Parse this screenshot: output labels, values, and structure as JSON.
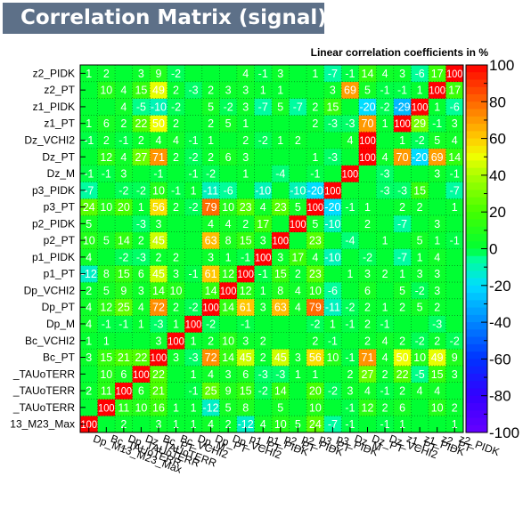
{
  "chart_data": {
    "type": "heatmap",
    "title": "Correlation Matrix (signal)",
    "subtitle": "Linear correlation coefficients in %",
    "variables": [
      "Dp_M13_M23_Max",
      "Bc_TAUoTERR",
      "Dp_TAUoTERR",
      "Dz_TAUoTERR",
      "Bc_PT",
      "Bc_VCHI2",
      "Dp_M",
      "Dp_PT",
      "Dp_VCHI2",
      "p1_PT",
      "p1_PIDK",
      "p2_PT",
      "p2_PIDK",
      "p3_PT",
      "p3_PIDK",
      "Dz_M",
      "Dz_PT",
      "Dz_VCHI2",
      "z1_PT",
      "z1_PIDK",
      "z2_PT",
      "z2_PIDK"
    ],
    "x_tick_labels": [
      "Dp_M13_M23_Max",
      "Bc_TAUoTERR",
      "Dp_TAUoTERR",
      "Dz_TAUoTERR",
      "Bc_PT",
      "Bc_VCHI2",
      "Dp_M",
      "Dp_PT",
      "Dp_VCHI2",
      "p1_PT",
      "p1_PIDK",
      "p2_PT",
      "p2_PIDK",
      "p3_PT",
      "p3_PIDK",
      "Dz_M",
      "Dz_PT",
      "Dz_VCHI2",
      "z1_PT",
      "z1_PIDK",
      "z2_PT",
      "z2_PIDK"
    ],
    "y_tick_labels": [
      "13_M23_Max",
      "_TAUoTERR",
      "_TAUoTERR",
      "_TAUoTERR",
      "Bc_PT",
      "Bc_VCHI2",
      "Dp_M",
      "Dp_PT",
      "Dp_VCHI2",
      "p1_PT",
      "p1_PIDK",
      "p2_PT",
      "p2_PIDK",
      "p3_PT",
      "p3_PIDK",
      "Dz_M",
      "Dz_PT",
      "Dz_VCHI2",
      "z1_PT",
      "z1_PIDK",
      "z2_PT",
      "z2_PIDK"
    ],
    "values": [
      [
        100,
        null,
        2,
        null,
        3,
        1,
        1,
        4,
        2,
        -12,
        4,
        10,
        5,
        24,
        -7,
        -1,
        null,
        -1,
        1,
        null,
        null,
        1
      ],
      [
        null,
        100,
        11,
        10,
        16,
        1,
        1,
        -12,
        5,
        8,
        null,
        5,
        null,
        10,
        null,
        -1,
        12,
        2,
        6,
        null,
        10,
        2
      ],
      [
        2,
        11,
        100,
        6,
        21,
        null,
        -1,
        25,
        9,
        15,
        -2,
        14,
        null,
        20,
        -2,
        3,
        4,
        -1,
        2,
        4,
        4,
        null
      ],
      [
        null,
        10,
        6,
        100,
        22,
        null,
        1,
        4,
        3,
        6,
        -3,
        -3,
        1,
        1,
        null,
        2,
        27,
        2,
        22,
        -5,
        15,
        3
      ],
      [
        3,
        15,
        21,
        22,
        100,
        3,
        -3,
        72,
        14,
        45,
        2,
        45,
        3,
        56,
        10,
        -1,
        71,
        4,
        50,
        10,
        49,
        9
      ],
      [
        1,
        1,
        null,
        null,
        3,
        100,
        1,
        2,
        10,
        3,
        2,
        null,
        null,
        2,
        -1,
        null,
        2,
        4,
        2,
        -2,
        2,
        -2
      ],
      [
        4,
        -1,
        -1,
        1,
        -3,
        1,
        100,
        -2,
        null,
        -1,
        null,
        null,
        null,
        -2,
        1,
        -1,
        2,
        -1,
        null,
        null,
        -3,
        null
      ],
      [
        4,
        12,
        25,
        4,
        72,
        2,
        -2,
        100,
        14,
        61,
        3,
        63,
        4,
        79,
        -11,
        -2,
        2,
        1,
        2,
        5,
        2,
        null
      ],
      [
        2,
        5,
        9,
        3,
        14,
        10,
        null,
        14,
        100,
        12,
        1,
        8,
        4,
        10,
        -6,
        null,
        6,
        null,
        5,
        -2,
        3,
        null
      ],
      [
        -12,
        8,
        15,
        6,
        45,
        3,
        -1,
        61,
        12,
        100,
        -1,
        15,
        2,
        23,
        null,
        1,
        3,
        2,
        1,
        3,
        3,
        null
      ],
      [
        4,
        null,
        -2,
        -3,
        2,
        2,
        null,
        3,
        1,
        -1,
        100,
        3,
        17,
        4,
        -10,
        null,
        -2,
        null,
        -7,
        1,
        4,
        null
      ],
      [
        10,
        5,
        14,
        2,
        45,
        null,
        null,
        63,
        8,
        15,
        3,
        100,
        null,
        23,
        null,
        -4,
        null,
        1,
        null,
        5,
        1,
        -1
      ],
      [
        5,
        null,
        null,
        -3,
        3,
        null,
        null,
        4,
        4,
        2,
        17,
        null,
        100,
        5,
        -10,
        null,
        2,
        null,
        -7,
        null,
        3,
        null
      ],
      [
        24,
        10,
        20,
        1,
        56,
        2,
        -2,
        79,
        10,
        23,
        4,
        23,
        5,
        100,
        -20,
        -1,
        1,
        null,
        2,
        2,
        null,
        1
      ],
      [
        -7,
        null,
        -2,
        -2,
        10,
        -1,
        1,
        -11,
        -6,
        null,
        -10,
        null,
        -10,
        -20,
        100,
        null,
        null,
        -3,
        -3,
        15,
        null,
        -7
      ],
      [
        -1,
        -1,
        3,
        null,
        -1,
        null,
        -1,
        -2,
        null,
        1,
        null,
        -4,
        null,
        -1,
        null,
        100,
        null,
        -3,
        null,
        null,
        3,
        -1
      ],
      [
        null,
        12,
        4,
        27,
        71,
        2,
        -2,
        2,
        6,
        3,
        null,
        null,
        null,
        1,
        -3,
        null,
        100,
        4,
        70,
        -20,
        69,
        14
      ],
      [
        -1,
        2,
        -1,
        2,
        4,
        4,
        -1,
        1,
        null,
        2,
        -2,
        1,
        2,
        null,
        null,
        4,
        100,
        null,
        1,
        -2,
        5,
        4
      ],
      [
        1,
        6,
        2,
        22,
        50,
        2,
        null,
        2,
        5,
        1,
        null,
        null,
        null,
        2,
        -3,
        -3,
        70,
        1,
        100,
        29,
        -1,
        3
      ],
      [
        null,
        null,
        4,
        -5,
        -10,
        -2,
        null,
        5,
        -2,
        3,
        -7,
        5,
        -7,
        2,
        15,
        null,
        -20,
        -2,
        -29,
        100,
        1,
        -6
      ],
      [
        null,
        10,
        4,
        15,
        49,
        2,
        -3,
        2,
        3,
        3,
        1,
        1,
        null,
        null,
        3,
        69,
        5,
        -1,
        -1,
        1,
        100,
        17
      ],
      [
        1,
        2,
        null,
        3,
        9,
        -2,
        null,
        null,
        null,
        4,
        -1,
        3,
        null,
        1,
        -7,
        -1,
        14,
        4,
        3,
        -6,
        17,
        100
      ]
    ],
    "zlim": [
      -100,
      100
    ],
    "colorbar_ticks": [
      100,
      80,
      60,
      40,
      20,
      0,
      -20,
      -40,
      -60,
      -80,
      -100
    ],
    "grid": true
  }
}
